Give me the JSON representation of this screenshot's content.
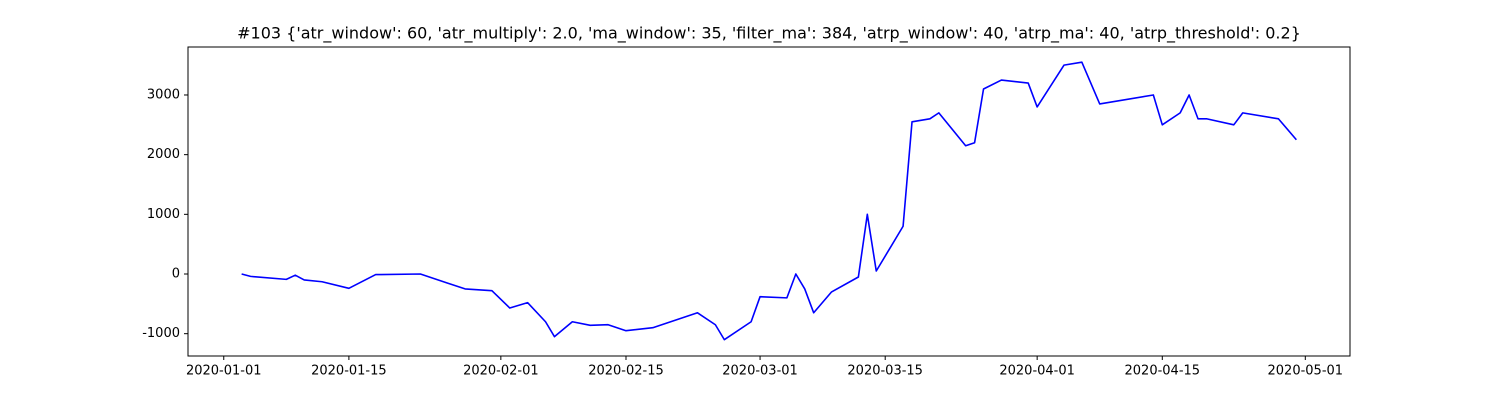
{
  "chart_data": {
    "type": "line",
    "title": "#103 {'atr_window': 60, 'atr_multiply': 2.0, 'ma_window': 35, 'filter_ma': 384, 'atrp_window': 40, 'atrp_ma': 40, 'atrp_threshold': 0.2}",
    "x": [
      "2020-01-03",
      "2020-01-04",
      "2020-01-08",
      "2020-01-09",
      "2020-01-10",
      "2020-01-12",
      "2020-01-15",
      "2020-01-18",
      "2020-01-23",
      "2020-01-26",
      "2020-01-28",
      "2020-01-31",
      "2020-02-02",
      "2020-02-04",
      "2020-02-06",
      "2020-02-07",
      "2020-02-09",
      "2020-02-11",
      "2020-02-13",
      "2020-02-15",
      "2020-02-18",
      "2020-02-23",
      "2020-02-25",
      "2020-02-26",
      "2020-02-29",
      "2020-03-01",
      "2020-03-04",
      "2020-03-05",
      "2020-03-06",
      "2020-03-07",
      "2020-03-09",
      "2020-03-12",
      "2020-03-13",
      "2020-03-14",
      "2020-03-17",
      "2020-03-18",
      "2020-03-20",
      "2020-03-21",
      "2020-03-24",
      "2020-03-25",
      "2020-03-26",
      "2020-03-28",
      "2020-03-31",
      "2020-04-01",
      "2020-04-04",
      "2020-04-06",
      "2020-04-08",
      "2020-04-14",
      "2020-04-15",
      "2020-04-17",
      "2020-04-18",
      "2020-04-19",
      "2020-04-20",
      "2020-04-23",
      "2020-04-24",
      "2020-04-28",
      "2020-04-30"
    ],
    "series": [
      {
        "color": "#0000ff",
        "values": [
          0,
          -40,
          -90,
          -20,
          -100,
          -130,
          -240,
          -10,
          0,
          -150,
          -250,
          -280,
          -570,
          -480,
          -800,
          -1050,
          -800,
          -860,
          -850,
          -950,
          -900,
          -650,
          -850,
          -1100,
          -800,
          -380,
          -400,
          0,
          -250,
          -650,
          -300,
          -50,
          1000,
          50,
          800,
          2550,
          2600,
          2700,
          2150,
          2200,
          3100,
          3250,
          3200,
          2800,
          3500,
          3550,
          2850,
          3000,
          2500,
          2700,
          3000,
          2600,
          2600,
          2500,
          2700,
          2600,
          2250
        ]
      }
    ],
    "xlim": [
      "2019-12-28",
      "2020-05-06"
    ],
    "xticks": [
      "2020-01-01",
      "2020-01-15",
      "2020-02-01",
      "2020-02-15",
      "2020-03-01",
      "2020-03-15",
      "2020-04-01",
      "2020-04-15",
      "2020-05-01"
    ],
    "ylim": [
      -1374,
      3804
    ],
    "yticks": [
      -1000,
      0,
      1000,
      2000,
      3000
    ]
  }
}
